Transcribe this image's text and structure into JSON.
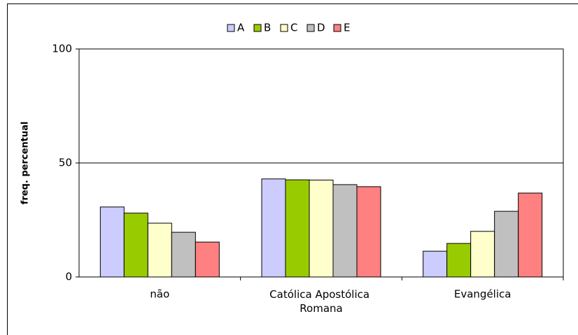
{
  "chart_data": {
    "type": "bar",
    "categories": [
      "não",
      "Católica Apostólica Romana",
      "Evangélica"
    ],
    "series": [
      {
        "name": "A",
        "color": "#ccccff",
        "values": [
          30.7,
          43,
          11.3
        ]
      },
      {
        "name": "B",
        "color": "#99cc00",
        "values": [
          28,
          42.6,
          14.7
        ]
      },
      {
        "name": "C",
        "color": "#ffffcc",
        "values": [
          23.6,
          42.5,
          20
        ]
      },
      {
        "name": "D",
        "color": "#c0c0c0",
        "values": [
          19.6,
          40.5,
          28.8
        ]
      },
      {
        "name": "E",
        "color": "#ff8080",
        "values": [
          15.3,
          39.6,
          36.8
        ]
      }
    ],
    "y_label": "freq. percentual",
    "ylim": [
      0,
      100
    ],
    "yticks": [
      0,
      50,
      100
    ],
    "grid": true,
    "legend": "top"
  }
}
